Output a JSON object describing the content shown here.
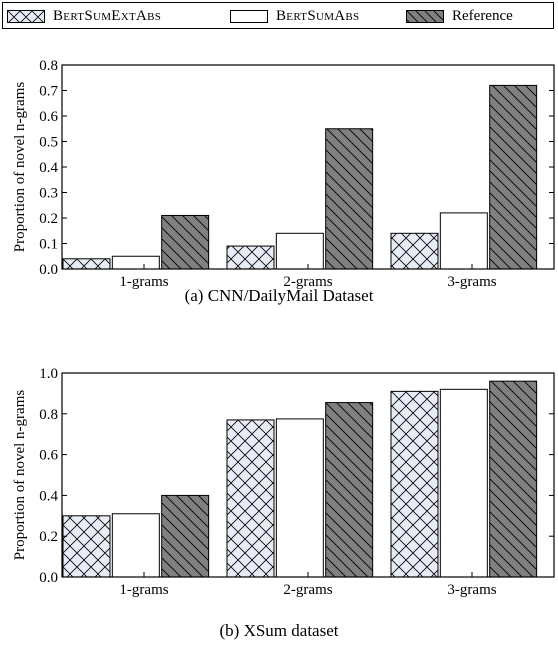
{
  "legend": [
    {
      "label": "BertSumExtAbs",
      "pattern": "crosshatch",
      "fill": "#e8ecf6",
      "small_caps": true
    },
    {
      "label": "BertSumAbs",
      "pattern": "none",
      "fill": "#ffffff",
      "small_caps": true
    },
    {
      "label": "Reference",
      "pattern": "diagonal",
      "fill": "#808080",
      "small_caps": false
    }
  ],
  "chart_data": [
    {
      "type": "bar",
      "title": "(a) CNN/DailyMail Dataset",
      "ylabel": "Proportion of novel n-grams",
      "categories": [
        "1-grams",
        "2-grams",
        "3-grams"
      ],
      "ylim": [
        0,
        0.8
      ],
      "yticks": [
        "0.0",
        "0.1",
        "0.2",
        "0.3",
        "0.4",
        "0.5",
        "0.6",
        "0.7",
        "0.8"
      ],
      "series": [
        {
          "name": "BertSumExtAbs",
          "values": [
            0.04,
            0.09,
            0.14
          ]
        },
        {
          "name": "BertSumAbs",
          "values": [
            0.05,
            0.14,
            0.22
          ]
        },
        {
          "name": "Reference",
          "values": [
            0.21,
            0.55,
            0.72
          ]
        }
      ]
    },
    {
      "type": "bar",
      "title": "(b) XSum dataset",
      "ylabel": "Proportion of novel n-grams",
      "categories": [
        "1-grams",
        "2-grams",
        "3-grams"
      ],
      "ylim": [
        0,
        1.0
      ],
      "yticks": [
        "0.0",
        "0.2",
        "0.4",
        "0.6",
        "0.8",
        "1.0"
      ],
      "series": [
        {
          "name": "BertSumExtAbs",
          "values": [
            0.3,
            0.77,
            0.91
          ]
        },
        {
          "name": "BertSumAbs",
          "values": [
            0.31,
            0.775,
            0.92
          ]
        },
        {
          "name": "Reference",
          "values": [
            0.4,
            0.855,
            0.96
          ]
        }
      ]
    }
  ]
}
